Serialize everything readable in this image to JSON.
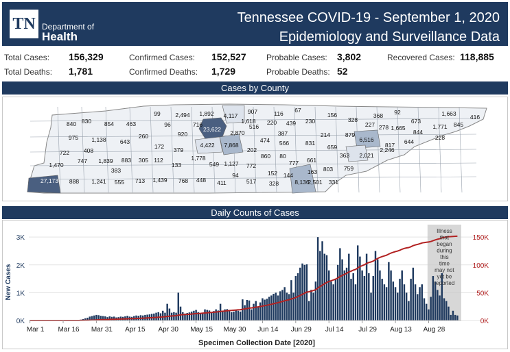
{
  "header": {
    "logo_text": "TN",
    "dept_line1": "Department of",
    "dept_line2": "Health",
    "title_line1": "Tennessee COVID-19 - September 1, 2020",
    "title_line2": "Epidemiology and Surveillance Data"
  },
  "stats": {
    "total_cases_label": "Total Cases:",
    "total_cases": "156,329",
    "confirmed_cases_label": "Confirmed Cases:",
    "confirmed_cases": "152,527",
    "probable_cases_label": "Probable Cases:",
    "probable_cases": "3,802",
    "recovered_cases_label": "Recovered Cases:",
    "recovered_cases": "118,885",
    "total_deaths_label": "Total Deaths:",
    "total_deaths": "1,781",
    "confirmed_deaths_label": "Confirmed Deaths:",
    "confirmed_deaths": "1,729",
    "probable_deaths_label": "Probable Deaths:",
    "probable_deaths": "52"
  },
  "sections": {
    "map_title": "Cases by County",
    "chart_title": "Daily Counts of Cases"
  },
  "map": {
    "county_values": [
      "840",
      "830",
      "854",
      "463",
      "99",
      "2,494",
      "1,892",
      "4,117",
      "907",
      "116",
      "67",
      "156",
      "368",
      "92",
      "1,663",
      "975",
      "1,138",
      "643",
      "260",
      "96",
      "920",
      "716",
      "23,622",
      "1,618",
      "516",
      "220",
      "439",
      "230",
      "328",
      "227",
      "278",
      "1,665",
      "673",
      "1,771",
      "845",
      "416",
      "722",
      "408",
      "883",
      "172",
      "2,870",
      "387",
      "214",
      "879",
      "6,516",
      "817",
      "844",
      "228",
      "1,470",
      "747",
      "1,839",
      "383",
      "305",
      "112",
      "379",
      "4,422",
      "7,868",
      "202",
      "474",
      "566",
      "831",
      "659",
      "363",
      "2,246",
      "644",
      "27,173",
      "888",
      "1,241",
      "555",
      "713",
      "1,439",
      "768",
      "448",
      "411",
      "94",
      "517",
      "328",
      "144",
      "8,136",
      "2,501",
      "331",
      "1,778",
      "549",
      "1,127",
      "772",
      "860",
      "80",
      "777",
      "661",
      "803",
      "759",
      "2,021",
      "133",
      "152",
      "163"
    ],
    "highlight_colors": {
      "high": "#4a5f80",
      "mid": "#a9b8cc",
      "low": "#dde3ec"
    }
  },
  "chart_data": {
    "type": "bar",
    "title": "",
    "xlabel": "Specimen Collection Date [2020]",
    "ylabel": "New Cases",
    "x_ticks": [
      "Mar 1",
      "Mar 16",
      "Mar 31",
      "Apr 15",
      "Apr 30",
      "May 15",
      "May 30",
      "Jun 14",
      "Jun 29",
      "Jul 14",
      "Jul 29",
      "Aug 13",
      "Aug 28"
    ],
    "ylim": [
      0,
      3300
    ],
    "y_ticks": [
      "0K",
      "1K",
      "2K",
      "3K"
    ],
    "y2lim": [
      0,
      165000
    ],
    "y2_ticks": [
      "0K",
      "50K",
      "100K",
      "150K"
    ],
    "series": [
      {
        "type": "bar",
        "color": "#1f3a5f",
        "values": [
          0,
          0,
          0,
          0,
          0,
          0,
          0,
          0,
          0,
          0,
          0,
          0,
          0,
          0,
          0,
          0,
          0,
          0,
          2,
          5,
          8,
          12,
          20,
          30,
          50,
          80,
          100,
          140,
          160,
          180,
          200,
          190,
          170,
          160,
          150,
          120,
          150,
          130,
          140,
          110,
          120,
          140,
          130,
          150,
          170,
          140,
          130,
          160,
          180,
          170,
          190,
          180,
          200,
          210,
          220,
          240,
          250,
          280,
          300,
          260,
          350,
          280,
          600,
          430,
          280,
          300,
          280,
          1000,
          500,
          300,
          250,
          270,
          290,
          320,
          350,
          380,
          300,
          260,
          280,
          400,
          380,
          360,
          300,
          340,
          400,
          360,
          600,
          350,
          400,
          410,
          380,
          300,
          320,
          380,
          350,
          320,
          760,
          550,
          740,
          720,
          400,
          600,
          700,
          500,
          650,
          800,
          750,
          780,
          850,
          900,
          960,
          1000,
          900,
          1050,
          1100,
          1200,
          1000,
          950,
          1450,
          1000,
          1600,
          1700,
          1900,
          2050,
          2000,
          2020,
          700,
          1100,
          1000,
          1400,
          3000,
          2500,
          2850,
          2400,
          2350,
          1800,
          1400,
          1300,
          1500,
          2000,
          2600,
          2200,
          1800,
          1900,
          2400,
          1500,
          1700,
          1300,
          2700,
          2300,
          1800,
          1600,
          2400,
          1700,
          1000,
          1600,
          2500,
          2200,
          1800,
          1500,
          1300,
          1200,
          2100,
          1800,
          1400,
          1200,
          1000,
          1500,
          1800,
          1300,
          1000,
          700,
          1500,
          1900,
          1300,
          950,
          1200,
          1300,
          800,
          600,
          400,
          850,
          1600,
          1400,
          1100,
          900,
          1700,
          800,
          700,
          500,
          200,
          350,
          200,
          180
        ]
      },
      {
        "type": "line",
        "color": "#b22222",
        "values": [
          0,
          0,
          0,
          0,
          0,
          0,
          0,
          0,
          0,
          0,
          0,
          0,
          0,
          0,
          0,
          0,
          0,
          0,
          2,
          7,
          15,
          27,
          47,
          77,
          127,
          207,
          307,
          447,
          607,
          787,
          987,
          1177,
          1347,
          1507,
          1657,
          1777,
          1927,
          2057,
          2197,
          2307,
          2427,
          2567,
          2697,
          2847,
          3017,
          3157,
          3287,
          3447,
          3627,
          3797,
          3987,
          4167,
          4367,
          4577,
          4797,
          5037,
          5287,
          5567,
          5867,
          6127,
          6477,
          6757,
          7357,
          7787,
          8067,
          8367,
          8647,
          9647,
          10147,
          10447,
          10697,
          10967,
          11257,
          11577,
          11927,
          12307,
          12607,
          12867,
          13147,
          13547,
          13927,
          14287,
          14587,
          14927,
          15327,
          15687,
          16287,
          16637,
          17037,
          17447,
          17827,
          18127,
          18447,
          18827,
          19177,
          19497,
          20257,
          20807,
          21547,
          22267,
          22667,
          23267,
          23967,
          24467,
          25117,
          25917,
          26667,
          27447,
          28297,
          29197,
          30157,
          31157,
          32057,
          33107,
          34207,
          35407,
          36407,
          37357,
          38807,
          39807,
          41407,
          43107,
          45007,
          47057,
          49057,
          51077,
          51777,
          52877,
          53877,
          55277,
          58277,
          60777,
          63627,
          66027,
          68377,
          70177,
          71577,
          72877,
          74377,
          76377,
          78977,
          81177,
          82977,
          84877,
          87277,
          88777,
          90477,
          91777,
          94477,
          96777,
          98577,
          100177,
          102577,
          104277,
          105277,
          106877,
          109377,
          111577,
          113377,
          114877,
          116177,
          117377,
          119477,
          121277,
          122677,
          123877,
          124877,
          126377,
          128177,
          129477,
          130477,
          131177,
          132677,
          134577,
          135877,
          136827,
          138027,
          139327,
          140127,
          140727,
          141127,
          141977,
          143577,
          144977,
          146077,
          146977,
          148677,
          149477,
          150177,
          150677,
          150877,
          151227,
          151427,
          151607
        ]
      }
    ],
    "annotation": "Illness that began during this time may not yet be reported"
  }
}
